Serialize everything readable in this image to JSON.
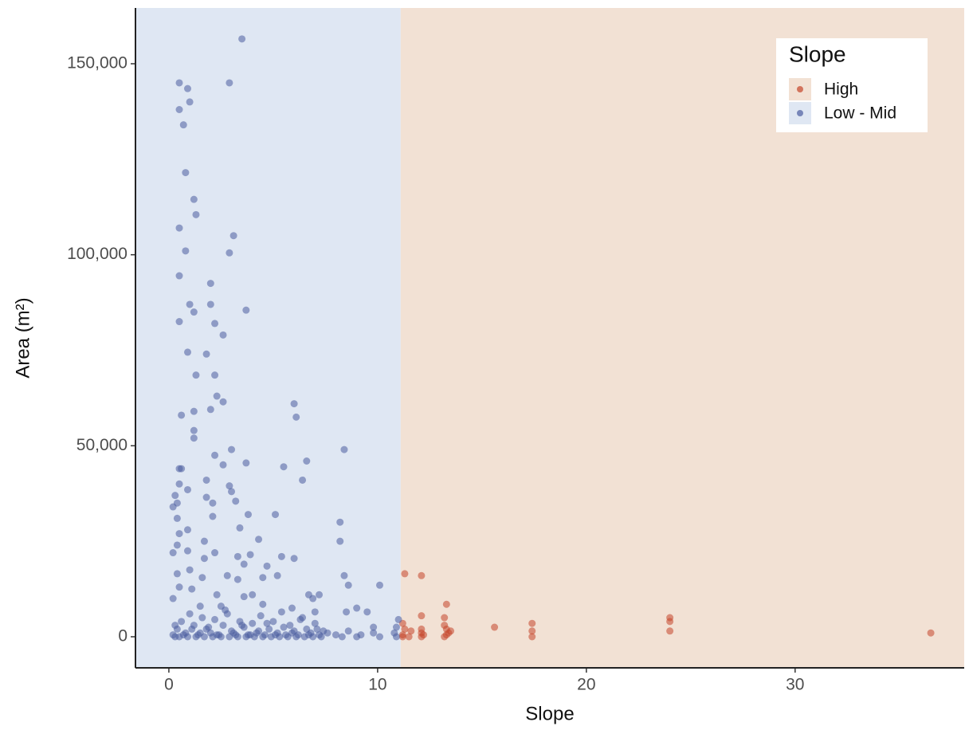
{
  "chart_data": {
    "type": "scatter",
    "x_label": "Slope",
    "y_label": "Area (m²)",
    "legend_title": "Slope",
    "legend_position": "top-right",
    "xlim": [
      -1.6,
      38.1
    ],
    "ylim": [
      -8137,
      164600
    ],
    "xticks": [
      0,
      10,
      20,
      30
    ],
    "yticks": [
      0,
      {
        "value": 50000,
        "label": "50,000"
      },
      {
        "value": 100000,
        "label": "100,000"
      },
      {
        "value": 150000,
        "label": "150,000"
      }
    ],
    "grid": false,
    "series": [
      {
        "name": "High",
        "color": "#c4452a",
        "shade": "#f2e1d4",
        "shade_x": [
          11.1,
          38.1
        ],
        "x": [
          11.3,
          12.1,
          13.3,
          12.1,
          13.2,
          11.2,
          11.3,
          11.2,
          11.6,
          12.1,
          12.1,
          12.1,
          13.2,
          13.3,
          13.4,
          13.2,
          13.5,
          15.6,
          17.4,
          17.4,
          17.4,
          24.0,
          24.0,
          24.0,
          36.5,
          11.2,
          11.5,
          13.3,
          12.2
        ],
        "y": [
          16500,
          16000,
          8500,
          5500,
          5000,
          3500,
          2000,
          500,
          1500,
          2000,
          1000,
          0,
          3000,
          2000,
          1000,
          0,
          1500,
          2500,
          3500,
          1500,
          0,
          5000,
          4000,
          1500,
          1000,
          0,
          0,
          500,
          500
        ]
      },
      {
        "name": "Low - Mid",
        "color": "#4a5d9f",
        "shade": "#dfe7f3",
        "shade_x": [
          -1.6,
          11.1
        ],
        "x": [
          0.5,
          0.5,
          0.9,
          1.0,
          0.7,
          3.5,
          2.9,
          0.8,
          1.2,
          1.3,
          0.5,
          0.8,
          3.1,
          2.9,
          0.5,
          2.0,
          1.0,
          2.0,
          3.7,
          1.2,
          0.5,
          2.2,
          2.6,
          0.9,
          1.8,
          1.3,
          2.2,
          2.3,
          2.6,
          6.0,
          6.1,
          2.0,
          1.2,
          0.6,
          1.2,
          1.2,
          8.4,
          3.0,
          2.2,
          6.6,
          3.7,
          2.6,
          5.5,
          0.6,
          0.5,
          6.4,
          1.8,
          2.9,
          0.5,
          0.9,
          3.0,
          0.3,
          1.8,
          3.2,
          0.4,
          2.1,
          0.2,
          5.1,
          3.8,
          2.1,
          0.4,
          8.2,
          3.4,
          0.9,
          0.5,
          4.3,
          1.7,
          8.2,
          0.4,
          0.9,
          2.2,
          3.3,
          5.4,
          0.2,
          3.9,
          1.7,
          6.0,
          3.6,
          4.7,
          1.0,
          0.4,
          2.8,
          8.4,
          4.5,
          1.6,
          5.2,
          3.3,
          8.6,
          10.1,
          0.5,
          1.1,
          6.7,
          7.2,
          2.3,
          4.0,
          3.6,
          0.2,
          6.9,
          9.0,
          9.5,
          8.5,
          1.5,
          2.5,
          4.5,
          5.9,
          7.0,
          9.8,
          10.8,
          10.9,
          11.0,
          0.2,
          0.4,
          0.6,
          0.8,
          1.0,
          1.2,
          1.4,
          1.6,
          1.8,
          2.0,
          2.2,
          2.4,
          2.6,
          2.8,
          3.0,
          3.2,
          3.4,
          3.6,
          3.8,
          4.0,
          4.2,
          4.4,
          4.6,
          4.8,
          5.0,
          5.2,
          5.4,
          5.6,
          5.8,
          6.0,
          6.2,
          6.4,
          6.6,
          6.8,
          7.0,
          7.2,
          7.4,
          0.3,
          0.7,
          1.1,
          1.5,
          1.9,
          2.3,
          2.7,
          3.1,
          3.5,
          3.9,
          4.3,
          4.7,
          5.1,
          5.5,
          5.9,
          6.3,
          6.7,
          7.1,
          7.6,
          8.0,
          8.6,
          9.2,
          9.8,
          0.3,
          0.5,
          0.9,
          1.3,
          1.7,
          2.1,
          2.5,
          2.9,
          3.3,
          3.7,
          4.1,
          4.5,
          4.9,
          5.3,
          5.7,
          6.1,
          6.5,
          6.9,
          7.3,
          8.3,
          9.0,
          10.1,
          10.9
        ],
        "y": [
          145000,
          138000,
          143500,
          140000,
          134000,
          156500,
          145000,
          121500,
          114500,
          110500,
          107000,
          101000,
          105000,
          100500,
          94500,
          92500,
          87000,
          87000,
          85500,
          85000,
          82500,
          82000,
          79000,
          74500,
          74000,
          68500,
          68500,
          63000,
          61500,
          61000,
          57500,
          59500,
          59000,
          58000,
          54000,
          52000,
          49000,
          49000,
          47500,
          46000,
          45500,
          45000,
          44500,
          44000,
          44000,
          41000,
          41000,
          39500,
          40000,
          38500,
          38000,
          37000,
          36500,
          35500,
          35000,
          35000,
          34000,
          32000,
          32000,
          31500,
          31000,
          30000,
          28500,
          28000,
          27000,
          25500,
          25000,
          25000,
          24000,
          22500,
          22000,
          21000,
          21000,
          22000,
          21500,
          20500,
          20500,
          19000,
          18500,
          17500,
          16500,
          16000,
          16000,
          15500,
          15500,
          16000,
          15000,
          13500,
          13500,
          13000,
          12500,
          11000,
          11000,
          11000,
          11000,
          10500,
          10000,
          10000,
          7500,
          6500,
          6500,
          8000,
          8000,
          8500,
          7500,
          6500,
          2500,
          1000,
          2500,
          4500,
          500,
          2000,
          4000,
          1000,
          6000,
          3000,
          500,
          5000,
          2000,
          1000,
          4500,
          500,
          3000,
          6000,
          1500,
          500,
          4000,
          2500,
          500,
          3500,
          1000,
          5500,
          500,
          2000,
          4000,
          1000,
          6500,
          500,
          3000,
          1500,
          500,
          5000,
          2000,
          1000,
          3500,
          500,
          1500,
          3000,
          500,
          2000,
          1000,
          2500,
          500,
          7000,
          1000,
          3000,
          500,
          1500,
          3500,
          500,
          2500,
          1000,
          4500,
          500,
          2000,
          1000,
          500,
          1500,
          500,
          1000,
          0,
          0,
          0,
          0,
          0,
          0,
          0,
          0,
          0,
          0,
          0,
          0,
          0,
          0,
          0,
          0,
          0,
          0,
          0,
          0,
          0,
          0,
          0
        ]
      }
    ]
  }
}
